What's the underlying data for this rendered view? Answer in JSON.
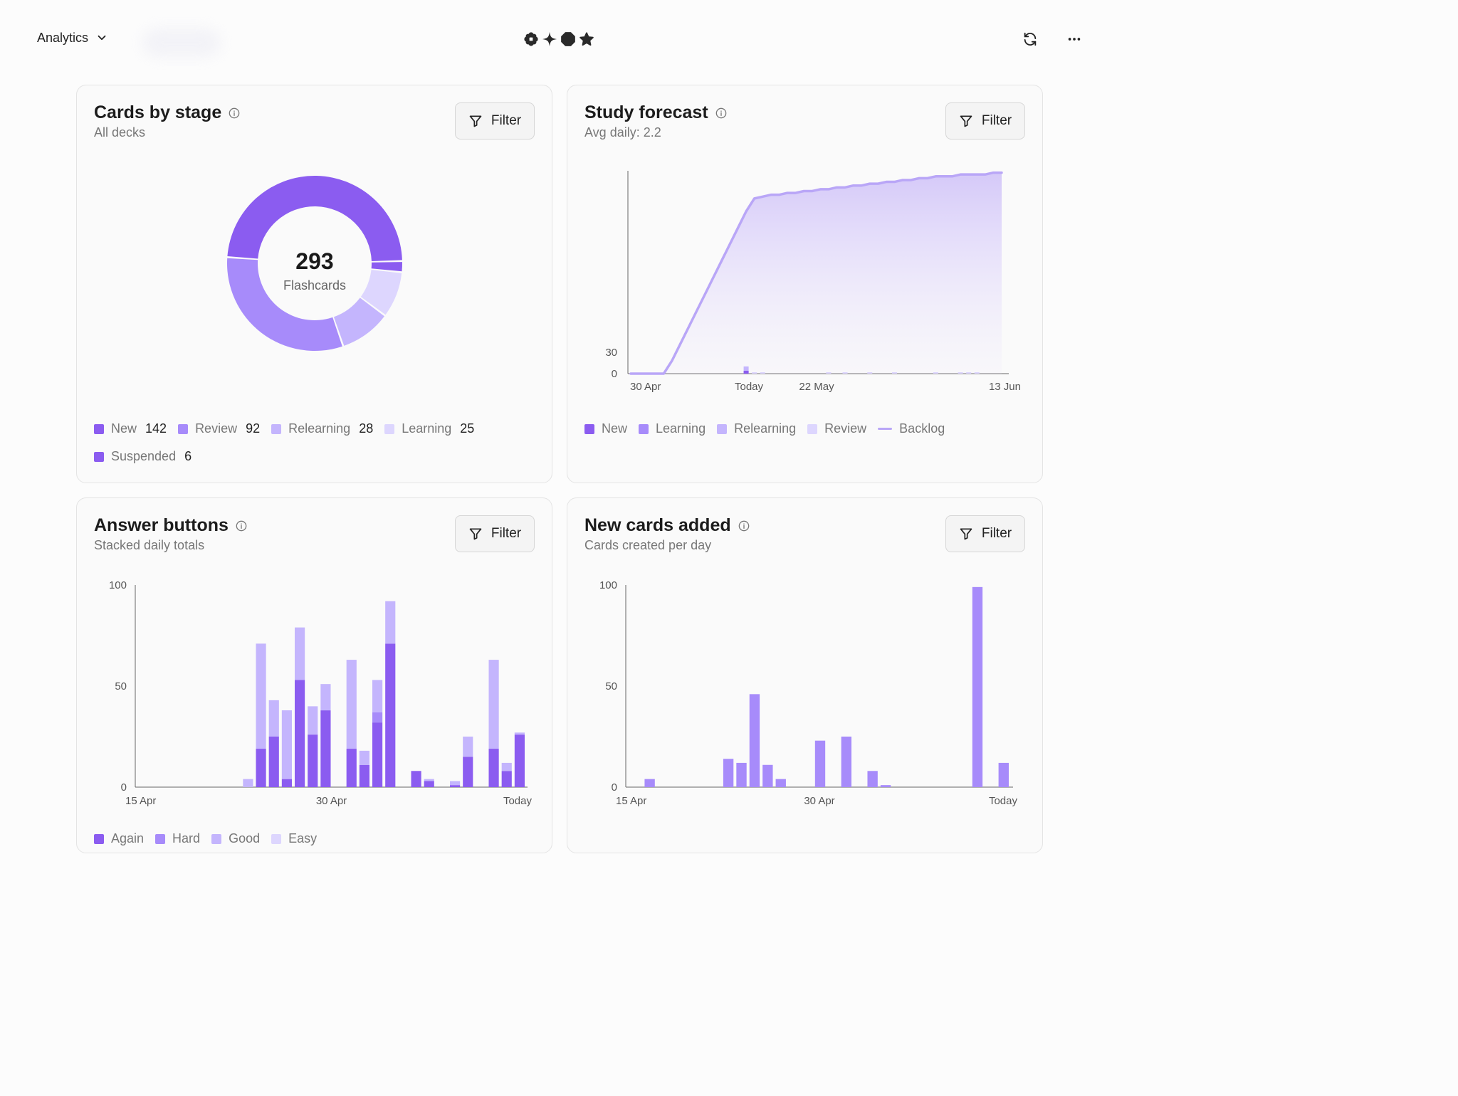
{
  "header": {
    "nav_label": "Analytics",
    "refresh_icon": "refresh-icon",
    "more_icon": "more-horizontal-icon"
  },
  "colors": {
    "deep": "#8b5cf0",
    "mid": "#a78bfa",
    "light": "#c4b5fd",
    "pale": "#ddd6fe",
    "axis": "#555555"
  },
  "cards": {
    "stage": {
      "title": "Cards by stage",
      "subtitle": "All decks",
      "filter_label": "Filter",
      "center_number": "293",
      "center_label": "Flashcards",
      "legend": [
        {
          "label": "New",
          "value": "142",
          "color": "#8b5cf0"
        },
        {
          "label": "Review",
          "value": "92",
          "color": "#a78bfa"
        },
        {
          "label": "Relearning",
          "value": "28",
          "color": "#c4b5fd"
        },
        {
          "label": "Learning",
          "value": "25",
          "color": "#ddd6fe"
        },
        {
          "label": "Suspended",
          "value": "6",
          "color": "#8b5cf0"
        }
      ]
    },
    "forecast": {
      "title": "Study forecast",
      "subtitle": "Avg daily: 2.2",
      "filter_label": "Filter",
      "legend": [
        {
          "label": "New",
          "color": "#8b5cf0",
          "kind": "box"
        },
        {
          "label": "Learning",
          "color": "#a78bfa",
          "kind": "box"
        },
        {
          "label": "Relearning",
          "color": "#c4b5fd",
          "kind": "box"
        },
        {
          "label": "Review",
          "color": "#ddd6fe",
          "kind": "box"
        },
        {
          "label": "Backlog",
          "color": "#b9a6f7",
          "kind": "line"
        }
      ]
    },
    "answers": {
      "title": "Answer buttons",
      "subtitle": "Stacked daily totals",
      "filter_label": "Filter",
      "legend": [
        {
          "label": "Again",
          "color": "#8b5cf0"
        },
        {
          "label": "Hard",
          "color": "#a78bfa"
        },
        {
          "label": "Good",
          "color": "#c4b5fd"
        },
        {
          "label": "Easy",
          "color": "#ddd6fe"
        }
      ]
    },
    "added": {
      "title": "New cards added",
      "subtitle": "Cards created per day",
      "filter_label": "Filter"
    }
  },
  "chart_data": [
    {
      "id": "stage",
      "type": "pie",
      "labels": [
        "New",
        "Suspended",
        "Learning",
        "Relearning",
        "Review"
      ],
      "values": [
        142,
        6,
        25,
        28,
        92
      ]
    },
    {
      "id": "forecast",
      "type": "area",
      "x_tick_labels": [
        "30 Apr",
        "Today",
        "22 May",
        "13 Jun"
      ],
      "y_tick_labels": [
        "0",
        "30"
      ],
      "ylim": [
        0,
        30
      ],
      "backlog_line": {
        "name": "Backlog",
        "days": [
          0,
          3,
          4,
          5,
          6,
          7,
          8,
          9,
          10,
          11,
          12,
          13,
          14,
          15,
          16,
          17,
          18,
          19,
          20,
          21,
          22,
          23,
          24,
          25,
          26,
          27,
          28,
          29,
          30,
          31,
          32,
          33,
          34,
          35,
          36,
          37,
          38,
          39,
          40,
          41,
          42,
          43,
          44,
          45
        ],
        "values": [
          0,
          0,
          0,
          7,
          16,
          25,
          34,
          43,
          52,
          61,
          70,
          79,
          88,
          95,
          96,
          97,
          97,
          98,
          98,
          99,
          99,
          100,
          100,
          101,
          101,
          102,
          102,
          103,
          103,
          104,
          104,
          105,
          105,
          106,
          106,
          107,
          107,
          107,
          108,
          108,
          108,
          108,
          109,
          109
        ]
      },
      "bars": {
        "days": [
          14,
          15,
          16,
          24,
          26,
          29,
          32,
          37,
          40,
          41,
          42
        ],
        "values": [
          8,
          1,
          1,
          1,
          1,
          1,
          1,
          1,
          1,
          1,
          1
        ]
      }
    },
    {
      "id": "answers",
      "type": "bar",
      "stacked": true,
      "x_tick_labels": [
        "15 Apr",
        "30 Apr",
        "Today"
      ],
      "y_tick_labels": [
        "0",
        "50",
        "100"
      ],
      "ylim": [
        0,
        100
      ],
      "series": [
        {
          "name": "Again",
          "values": [
            0,
            0,
            0,
            0,
            0,
            0,
            0,
            0,
            0,
            19,
            25,
            4,
            53,
            26,
            38,
            0,
            19,
            11,
            32,
            71,
            0,
            8,
            3,
            0,
            1,
            15,
            0,
            19,
            8,
            26
          ]
        },
        {
          "name": "Hard",
          "values": [
            0,
            0,
            0,
            0,
            0,
            0,
            0,
            0,
            0,
            0,
            0,
            0,
            0,
            0,
            0,
            0,
            0,
            0,
            5,
            0,
            0,
            0,
            0,
            0,
            0,
            0,
            0,
            0,
            0,
            0
          ]
        },
        {
          "name": "Good",
          "values": [
            0,
            0,
            0,
            0,
            0,
            0,
            0,
            0,
            4,
            52,
            18,
            34,
            26,
            14,
            13,
            0,
            44,
            7,
            16,
            21,
            0,
            0,
            1,
            0,
            2,
            10,
            0,
            44,
            4,
            1
          ]
        },
        {
          "name": "Easy",
          "values": [
            0,
            0,
            0,
            0,
            0,
            0,
            0,
            0,
            0,
            0,
            0,
            0,
            0,
            0,
            0,
            0,
            0,
            0,
            0,
            0,
            0,
            0,
            0,
            0,
            0,
            0,
            0,
            0,
            0,
            0
          ]
        }
      ]
    },
    {
      "id": "added",
      "type": "bar",
      "x_tick_labels": [
        "15 Apr",
        "30 Apr",
        "Today"
      ],
      "y_tick_labels": [
        "0",
        "50",
        "100"
      ],
      "ylim": [
        0,
        100
      ],
      "values": [
        0,
        4,
        0,
        0,
        0,
        0,
        0,
        14,
        12,
        46,
        11,
        4,
        0,
        0,
        23,
        0,
        25,
        0,
        8,
        1,
        0,
        0,
        0,
        0,
        0,
        0,
        99,
        0,
        12
      ]
    }
  ]
}
